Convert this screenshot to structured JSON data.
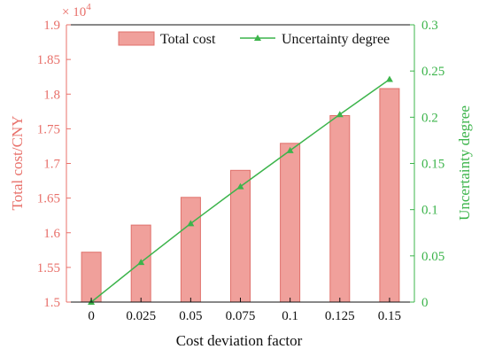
{
  "chart_data": {
    "type": "bar+line",
    "categories": [
      "0",
      "0.025",
      "0.05",
      "0.075",
      "0.1",
      "0.125",
      "0.15"
    ],
    "xlabel": "Cost deviation factor",
    "series": [
      {
        "name": "Total cost",
        "type": "bar",
        "axis": "left",
        "values": [
          15720,
          16110,
          16510,
          16900,
          17290,
          17690,
          18080
        ],
        "color": "#f0a09b",
        "edge_color": "#e0716b"
      },
      {
        "name": "Uncertainty degree",
        "type": "line",
        "axis": "right",
        "marker": "triangle",
        "values": [
          0,
          0.043,
          0.085,
          0.125,
          0.164,
          0.203,
          0.241
        ],
        "color": "#3cb44b"
      }
    ],
    "y_left": {
      "label": "Total cost/CNY",
      "range": [
        1.5,
        1.9
      ],
      "ticks": [
        "1.5",
        "1.55",
        "1.6",
        "1.65",
        "1.7",
        "1.75",
        "1.8",
        "1.85",
        "1.9"
      ],
      "multiplier_label": "× 10",
      "multiplier_exponent": "4",
      "scale": 10000,
      "color": "#e8706a"
    },
    "y_right": {
      "label": "Uncertainty degree",
      "range": [
        0,
        0.3
      ],
      "ticks": [
        "0",
        "0.05",
        "0.1",
        "0.15",
        "0.2",
        "0.25",
        "0.3"
      ],
      "color": "#3cb44b"
    },
    "legend_position": "top-right",
    "grid": false
  }
}
